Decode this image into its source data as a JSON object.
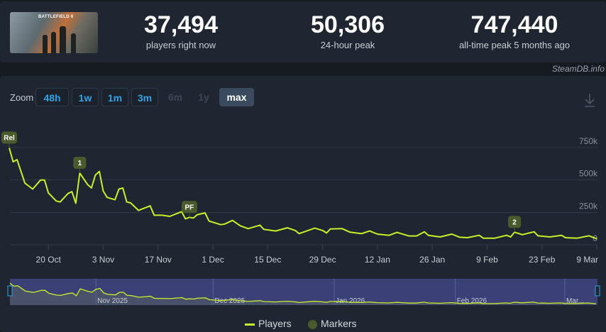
{
  "header": {
    "game_image_alt": "BATTLEFIELD 6",
    "stats": [
      {
        "value": "37,494",
        "label": "players right now"
      },
      {
        "value": "50,306",
        "label": "24-hour peak"
      },
      {
        "value": "747,440",
        "label": "all-time peak 5 months ago"
      }
    ],
    "credit": "SteamDB.info"
  },
  "toolbar": {
    "zoom_label": "Zoom",
    "ranges": [
      {
        "label": "48h",
        "state": "enabled"
      },
      {
        "label": "1w",
        "state": "enabled"
      },
      {
        "label": "1m",
        "state": "enabled"
      },
      {
        "label": "3m",
        "state": "enabled"
      },
      {
        "label": "6m",
        "state": "disabled"
      },
      {
        "label": "1y",
        "state": "disabled"
      },
      {
        "label": "max",
        "state": "selected"
      }
    ],
    "download_icon": "download-icon"
  },
  "colors": {
    "line": "#c8f02a",
    "marker": "#4b5a2c",
    "navigator": "#3b4177"
  },
  "chart_data": {
    "type": "line",
    "title": "",
    "xlabel": "",
    "ylabel": "",
    "ylim": [
      0,
      750000
    ],
    "y_ticks": [
      "0",
      "250k",
      "500k",
      "750k"
    ],
    "y_tick_values": [
      0,
      250000,
      500000,
      750000
    ],
    "x_ticks": [
      {
        "label": "20 Oct",
        "date": "2025-10-20"
      },
      {
        "label": "3 Nov",
        "date": "2025-11-03"
      },
      {
        "label": "17 Nov",
        "date": "2025-11-17"
      },
      {
        "label": "1 Dec",
        "date": "2025-12-01"
      },
      {
        "label": "15 Dec",
        "date": "2025-12-15"
      },
      {
        "label": "29 Dec",
        "date": "2025-12-29"
      },
      {
        "label": "12 Jan",
        "date": "2026-01-12"
      },
      {
        "label": "26 Jan",
        "date": "2026-01-26"
      },
      {
        "label": "9 Feb",
        "date": "2026-02-09"
      },
      {
        "label": "23 Feb",
        "date": "2026-02-23"
      },
      {
        "label": "9 Mar",
        "date": "2026-03-09"
      }
    ],
    "grid": true,
    "legend": "bottom",
    "series": [
      {
        "name": "Players",
        "points": [
          [
            "2025-10-10",
            747440
          ],
          [
            "2025-10-11",
            640000
          ],
          [
            "2025-10-12",
            657000
          ],
          [
            "2025-10-14",
            475000
          ],
          [
            "2025-10-16",
            430000
          ],
          [
            "2025-10-18",
            500000
          ],
          [
            "2025-10-19",
            500000
          ],
          [
            "2025-10-20",
            400000
          ],
          [
            "2025-10-22",
            338000
          ],
          [
            "2025-10-23",
            330000
          ],
          [
            "2025-10-25",
            395000
          ],
          [
            "2025-10-26",
            410000
          ],
          [
            "2025-10-27",
            320000
          ],
          [
            "2025-10-28",
            553000
          ],
          [
            "2025-10-30",
            465000
          ],
          [
            "2025-10-31",
            438000
          ],
          [
            "2025-11-01",
            538000
          ],
          [
            "2025-11-02",
            566000
          ],
          [
            "2025-11-03",
            414000
          ],
          [
            "2025-11-04",
            365000
          ],
          [
            "2025-11-06",
            347000
          ],
          [
            "2025-11-07",
            430000
          ],
          [
            "2025-11-08",
            438000
          ],
          [
            "2025-11-09",
            330000
          ],
          [
            "2025-11-10",
            323000
          ],
          [
            "2025-11-12",
            265000
          ],
          [
            "2025-11-15",
            300000
          ],
          [
            "2025-11-16",
            228000
          ],
          [
            "2025-11-18",
            228000
          ],
          [
            "2025-11-20",
            219000
          ],
          [
            "2025-11-23",
            255000
          ],
          [
            "2025-11-24",
            200000
          ],
          [
            "2025-11-25",
            212000
          ],
          [
            "2025-11-26",
            206000
          ],
          [
            "2025-11-27",
            232000
          ],
          [
            "2025-11-29",
            246000
          ],
          [
            "2025-11-30",
            183000
          ],
          [
            "2025-12-03",
            155000
          ],
          [
            "2025-12-04",
            160000
          ],
          [
            "2025-12-06",
            188000
          ],
          [
            "2025-12-08",
            146000
          ],
          [
            "2025-12-10",
            124000
          ],
          [
            "2025-12-13",
            151000
          ],
          [
            "2025-12-14",
            119000
          ],
          [
            "2025-12-17",
            106000
          ],
          [
            "2025-12-20",
            131000
          ],
          [
            "2025-12-22",
            110000
          ],
          [
            "2025-12-23",
            86000
          ],
          [
            "2025-12-27",
            128000
          ],
          [
            "2025-12-29",
            110000
          ],
          [
            "2025-12-30",
            91000
          ],
          [
            "2025-12-31",
            122000
          ],
          [
            "2026-01-03",
            124000
          ],
          [
            "2026-01-05",
            97000
          ],
          [
            "2026-01-08",
            86000
          ],
          [
            "2026-01-10",
            106000
          ],
          [
            "2026-01-12",
            82000
          ],
          [
            "2026-01-15",
            73000
          ],
          [
            "2026-01-17",
            95000
          ],
          [
            "2026-01-20",
            68000
          ],
          [
            "2026-01-22",
            68000
          ],
          [
            "2026-01-24",
            100000
          ],
          [
            "2026-01-25",
            73000
          ],
          [
            "2026-01-28",
            60000
          ],
          [
            "2026-01-31",
            82000
          ],
          [
            "2026-02-02",
            58000
          ],
          [
            "2026-02-04",
            55000
          ],
          [
            "2026-02-07",
            73000
          ],
          [
            "2026-02-08",
            51000
          ],
          [
            "2026-02-11",
            51000
          ],
          [
            "2026-02-14",
            73000
          ],
          [
            "2026-02-15",
            60000
          ],
          [
            "2026-02-16",
            97000
          ],
          [
            "2026-02-18",
            78000
          ],
          [
            "2026-02-21",
            100000
          ],
          [
            "2026-02-22",
            69000
          ],
          [
            "2026-02-25",
            60000
          ],
          [
            "2026-02-28",
            73000
          ],
          [
            "2026-03-01",
            55000
          ],
          [
            "2026-03-04",
            51000
          ],
          [
            "2026-03-07",
            69000
          ],
          [
            "2026-03-09",
            46000
          ]
        ]
      }
    ],
    "markers": [
      {
        "label": "Rel",
        "date": "2025-10-10"
      },
      {
        "label": "1",
        "date": "2025-10-28"
      },
      {
        "label": "PF",
        "date": "2025-11-25"
      },
      {
        "label": "2",
        "date": "2026-02-16"
      }
    ]
  },
  "navigator": {
    "labels": [
      "Nov 2025",
      "Dec 2025",
      "Jan 2026",
      "Feb 2026",
      "Mar..."
    ],
    "label_dates": [
      "2025-11-01",
      "2025-12-01",
      "2026-01-01",
      "2026-02-01",
      "2026-03-01"
    ]
  },
  "legend": {
    "items": [
      {
        "label": "Players",
        "kind": "line"
      },
      {
        "label": "Markers",
        "kind": "circle"
      }
    ]
  }
}
